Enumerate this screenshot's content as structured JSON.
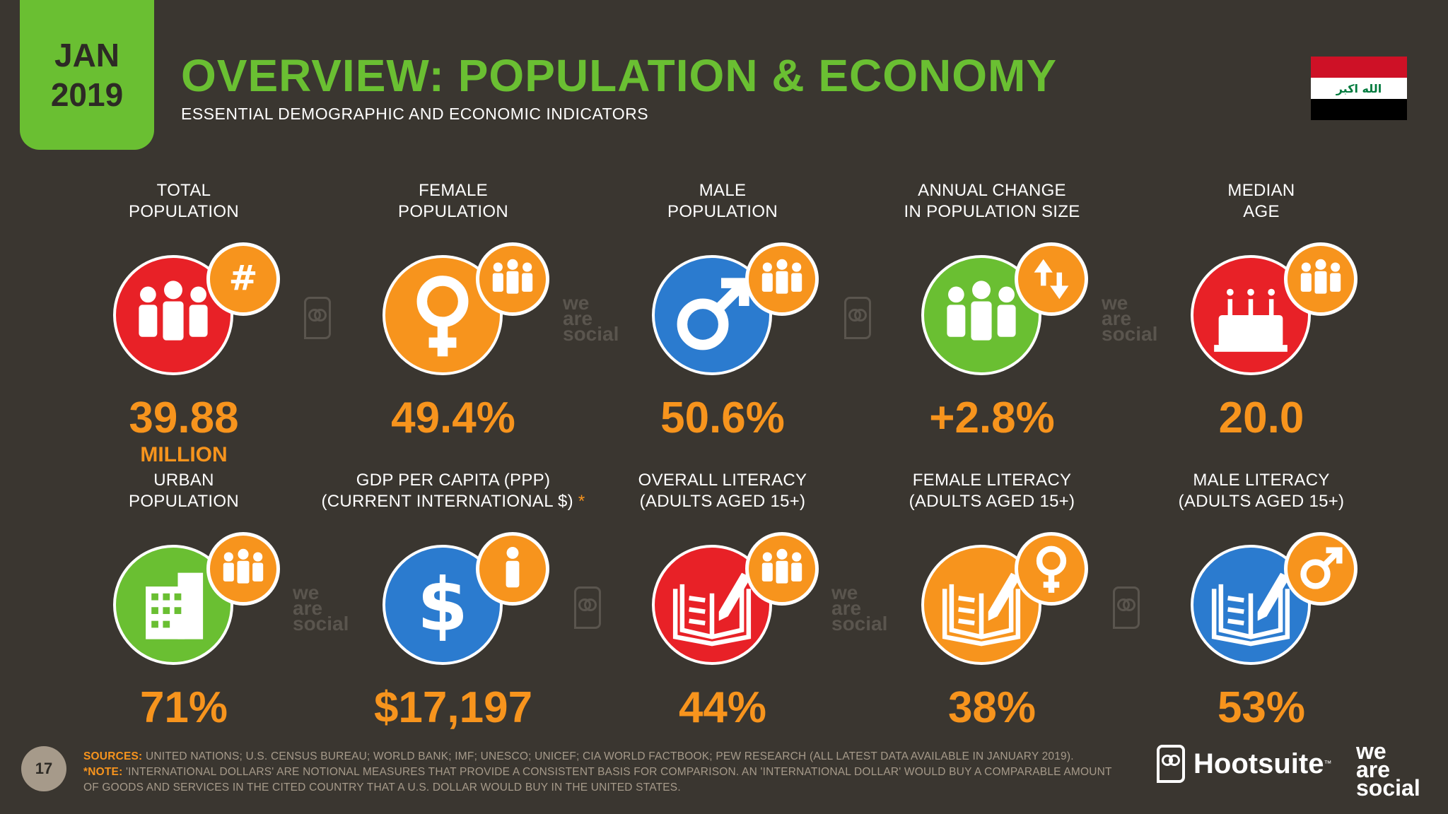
{
  "header": {
    "month": "JAN",
    "year": "2019",
    "title": "OVERVIEW: POPULATION & ECONOMY",
    "subtitle": "ESSENTIAL DEMOGRAPHIC AND ECONOMIC INDICATORS",
    "flag_text": "الله اكبر"
  },
  "colors": {
    "red": "#e82127",
    "orange": "#f7941d",
    "blue": "#2b7bcf",
    "green": "#6abf32",
    "bg": "#3a3630"
  },
  "stats": [
    {
      "label1": "TOTAL",
      "label2": "POPULATION",
      "value": "39.88",
      "unit": "MILLION",
      "icon": "people-icon",
      "badge": "hash-icon",
      "color": "red"
    },
    {
      "label1": "FEMALE",
      "label2": "POPULATION",
      "value": "49.4%",
      "icon": "female-symbol-icon",
      "badge": "people-icon",
      "color": "orange"
    },
    {
      "label1": "MALE",
      "label2": "POPULATION",
      "value": "50.6%",
      "icon": "male-symbol-icon",
      "badge": "people-icon",
      "color": "blue"
    },
    {
      "label1": "ANNUAL CHANGE",
      "label2": "IN POPULATION SIZE",
      "value": "+2.8%",
      "icon": "people-icon",
      "badge": "up-down-arrows-icon",
      "color": "green"
    },
    {
      "label1": "MEDIAN",
      "label2": "AGE",
      "value": "20.0",
      "icon": "birthday-cake-icon",
      "badge": "people-icon",
      "color": "red"
    },
    {
      "label1": "URBAN",
      "label2": "POPULATION",
      "value": "71%",
      "icon": "building-icon",
      "badge": "people-icon",
      "color": "green"
    },
    {
      "label1": "GDP PER CAPITA (PPP)",
      "label2": "(CURRENT INTERNATIONAL $)",
      "asterisk": "*",
      "value": "$17,197",
      "icon": "dollar-icon",
      "badge": "person-icon",
      "color": "blue"
    },
    {
      "label1": "OVERALL LITERACY",
      "label2": "(ADULTS AGED 15+)",
      "value": "44%",
      "icon": "book-pen-icon",
      "badge": "people-icon",
      "color": "red"
    },
    {
      "label1": "FEMALE LITERACY",
      "label2": "(ADULTS AGED 15+)",
      "value": "38%",
      "icon": "book-pen-icon",
      "badge": "female-symbol-icon",
      "color": "orange"
    },
    {
      "label1": "MALE LITERACY",
      "label2": "(ADULTS AGED 15+)",
      "value": "53%",
      "icon": "book-pen-icon",
      "badge": "male-symbol-icon",
      "color": "blue"
    }
  ],
  "watermark": {
    "line1": "we",
    "line2": "are",
    "line3": "social"
  },
  "footer": {
    "page_number": "17",
    "sources_label": "SOURCES:",
    "sources_text": "UNITED NATIONS; U.S. CENSUS BUREAU; WORLD BANK; IMF; UNESCO; UNICEF; CIA WORLD FACTBOOK; PEW RESEARCH (ALL LATEST DATA AVAILABLE IN JANUARY 2019).",
    "note_label": "*NOTE:",
    "note_text": "'INTERNATIONAL DOLLARS' ARE NOTIONAL MEASURES THAT PROVIDE A CONSISTENT BASIS FOR COMPARISON. AN 'INTERNATIONAL DOLLAR' WOULD BUY A COMPARABLE AMOUNT OF GOODS AND SERVICES IN THE CITED COUNTRY THAT A U.S. DOLLAR WOULD BUY IN THE UNITED STATES.",
    "brand_hootsuite": "Hootsuite",
    "brand_tm": "™",
    "brand_was_1": "we",
    "brand_was_2": "are",
    "brand_was_3": "social"
  }
}
